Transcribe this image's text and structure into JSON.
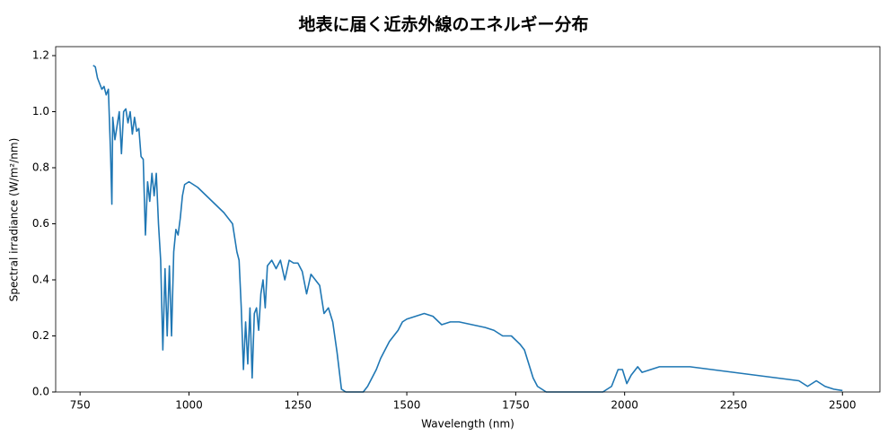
{
  "chart_data": {
    "type": "line",
    "title": "地表に届く近赤外線のエネルギー分布",
    "x_label": "Wavelength (nm)",
    "y_label": "Spectral irradiance (W/m²/nm)",
    "color": "#1f77b4",
    "x": [
      780,
      785,
      790,
      795,
      800,
      805,
      810,
      815,
      820,
      823,
      825,
      830,
      835,
      840,
      845,
      850,
      855,
      860,
      865,
      870,
      875,
      880,
      885,
      890,
      895,
      900,
      905,
      910,
      915,
      920,
      925,
      930,
      935,
      940,
      945,
      950,
      955,
      960,
      965,
      970,
      975,
      980,
      985,
      990,
      1000,
      1020,
      1040,
      1060,
      1080,
      1090,
      1100,
      1105,
      1110,
      1115,
      1120,
      1125,
      1130,
      1135,
      1140,
      1145,
      1150,
      1155,
      1160,
      1165,
      1170,
      1175,
      1180,
      1190,
      1200,
      1210,
      1220,
      1230,
      1240,
      1250,
      1260,
      1270,
      1280,
      1290,
      1300,
      1310,
      1320,
      1330,
      1340,
      1350,
      1360,
      1400,
      1410,
      1420,
      1430,
      1440,
      1450,
      1460,
      1470,
      1480,
      1490,
      1500,
      1520,
      1540,
      1560,
      1580,
      1600,
      1620,
      1650,
      1680,
      1700,
      1720,
      1740,
      1760,
      1770,
      1780,
      1790,
      1800,
      1820,
      1950,
      1970,
      1985,
      1995,
      2005,
      2015,
      2030,
      2040,
      2060,
      2080,
      2120,
      2150,
      2200,
      2250,
      2300,
      2350,
      2400,
      2420,
      2440,
      2460,
      2480,
      2500
    ],
    "values": [
      1.165,
      1.16,
      1.12,
      1.1,
      1.08,
      1.09,
      1.06,
      1.08,
      0.85,
      0.67,
      0.98,
      0.9,
      0.95,
      1.0,
      0.85,
      1.0,
      1.01,
      0.96,
      1.0,
      0.92,
      0.98,
      0.93,
      0.94,
      0.84,
      0.83,
      0.56,
      0.75,
      0.68,
      0.78,
      0.7,
      0.78,
      0.6,
      0.47,
      0.15,
      0.44,
      0.2,
      0.45,
      0.2,
      0.5,
      0.58,
      0.56,
      0.62,
      0.7,
      0.74,
      0.75,
      0.73,
      0.7,
      0.67,
      0.64,
      0.62,
      0.6,
      0.55,
      0.5,
      0.47,
      0.3,
      0.08,
      0.25,
      0.1,
      0.3,
      0.05,
      0.28,
      0.3,
      0.22,
      0.35,
      0.4,
      0.3,
      0.45,
      0.47,
      0.44,
      0.47,
      0.4,
      0.47,
      0.46,
      0.46,
      0.43,
      0.35,
      0.42,
      0.4,
      0.38,
      0.28,
      0.3,
      0.25,
      0.14,
      0.01,
      0.0,
      0.0,
      0.02,
      0.05,
      0.08,
      0.12,
      0.15,
      0.18,
      0.2,
      0.22,
      0.25,
      0.26,
      0.27,
      0.28,
      0.27,
      0.24,
      0.25,
      0.25,
      0.24,
      0.23,
      0.22,
      0.2,
      0.2,
      0.17,
      0.15,
      0.1,
      0.05,
      0.02,
      0.0,
      0.0,
      0.02,
      0.08,
      0.08,
      0.03,
      0.06,
      0.09,
      0.07,
      0.08,
      0.09,
      0.09,
      0.09,
      0.08,
      0.07,
      0.06,
      0.05,
      0.04,
      0.02,
      0.04,
      0.02,
      0.01,
      0.005
    ],
    "xlim": [
      694,
      2586
    ],
    "ylim": [
      0,
      1.232
    ],
    "xticks": [
      750,
      1000,
      1250,
      1500,
      1750,
      2000,
      2250,
      2500
    ],
    "yticks": [
      {
        "value": 0,
        "label": "0.0"
      },
      {
        "value": 0.2,
        "label": "0.2"
      },
      {
        "value": 0.4,
        "label": "0.4"
      },
      {
        "value": 0.6,
        "label": "0.6"
      },
      {
        "value": 0.8,
        "label": "0.8"
      },
      {
        "value": 1.0,
        "label": "1.0"
      },
      {
        "value": 1.2,
        "label": "1.2"
      }
    ]
  }
}
